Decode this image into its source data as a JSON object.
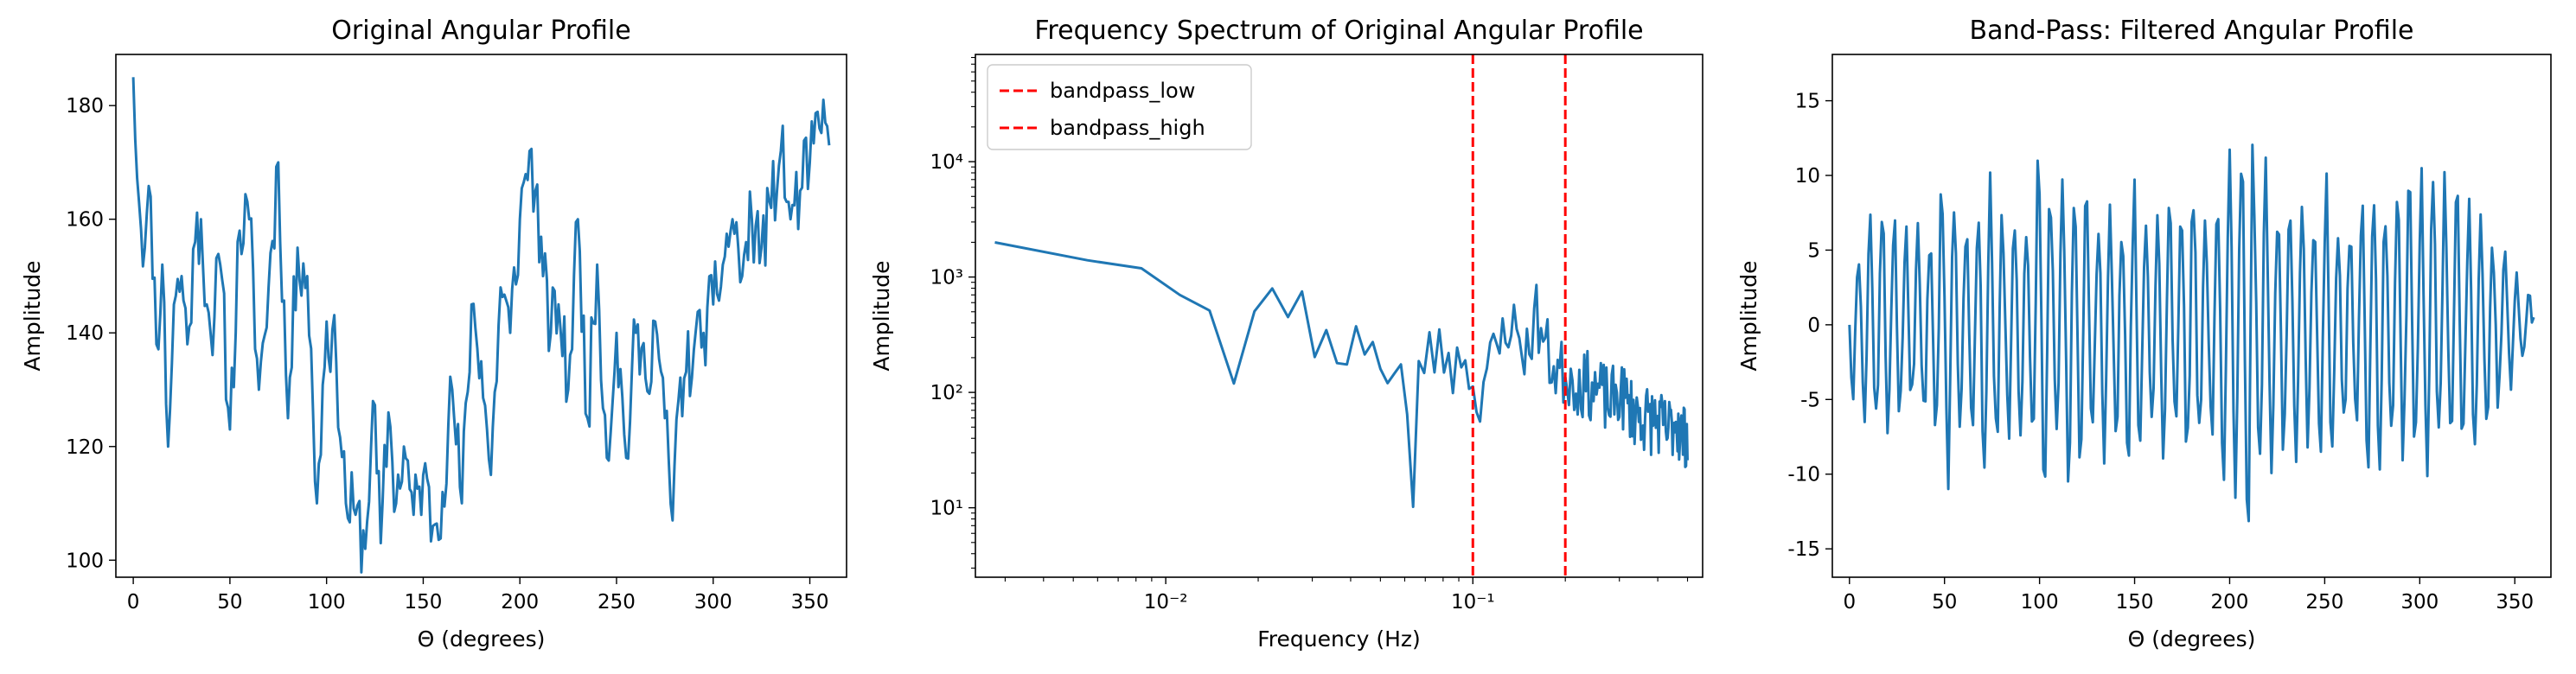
{
  "chart_data": [
    {
      "type": "line",
      "title": "Original Angular Profile",
      "xlabel": "Θ (degrees)",
      "ylabel": "Amplitude",
      "xlim": [
        -9,
        369
      ],
      "ylim": [
        97,
        189
      ],
      "xticks": [
        0,
        50,
        100,
        150,
        200,
        250,
        300,
        350
      ],
      "yticks": [
        100,
        120,
        140,
        160,
        180
      ],
      "grid": false,
      "color": "#1f77b4",
      "anchors": {
        "x": [
          0,
          3,
          6,
          9,
          12,
          15,
          18,
          21,
          25,
          28,
          32,
          35,
          38,
          40,
          45,
          50,
          55,
          60,
          65,
          70,
          75,
          80,
          85,
          90,
          95,
          100,
          105,
          110,
          115,
          120,
          124,
          128,
          132,
          136,
          140,
          145,
          150,
          155,
          160,
          165,
          170,
          175,
          180,
          185,
          190,
          195,
          200,
          205,
          208,
          212,
          216,
          220,
          225,
          230,
          235,
          240,
          245,
          250,
          255,
          260,
          265,
          270,
          275,
          279,
          282,
          285,
          290,
          295,
          300,
          305,
          310,
          315,
          320,
          325,
          330,
          335,
          340,
          345,
          350,
          355,
          358,
          360
        ],
        "y": [
          185,
          163,
          155,
          164,
          138,
          152,
          120,
          145,
          150,
          138,
          156,
          160,
          145,
          140,
          152,
          123,
          158,
          160,
          130,
          148,
          170,
          125,
          155,
          150,
          110,
          142,
          135,
          110,
          108,
          102,
          128,
          103,
          126,
          110,
          120,
          108,
          115,
          106,
          112,
          130,
          110,
          145,
          135,
          115,
          148,
          140,
          160,
          172,
          165,
          150,
          140,
          145,
          130,
          160,
          125,
          152,
          118,
          140,
          118,
          140,
          132,
          142,
          125,
          107,
          128,
          132,
          137,
          140,
          145,
          152,
          160,
          150,
          160,
          155,
          162,
          172,
          160,
          165,
          170,
          176,
          177,
          173
        ]
      },
      "noise_amplitude": 7
    },
    {
      "type": "line",
      "title": "Frequency Spectrum of Original Angular Profile",
      "xlabel": "Frequency (Hz)",
      "ylabel": "Amplitude",
      "xscale": "log",
      "yscale": "log",
      "xlim": [
        0.0024,
        0.56
      ],
      "ylim": [
        2.5,
        85000
      ],
      "xticks": [
        0.01,
        0.1
      ],
      "xtick_labels": [
        "10⁻²",
        "10⁻¹"
      ],
      "yticks": [
        10,
        100,
        1000,
        10000
      ],
      "ytick_labels": [
        "10¹",
        "10²",
        "10³",
        "10⁴"
      ],
      "grid": false,
      "legend_position": "upper-left",
      "color": "#1f77b4",
      "anchors": {
        "x": [
          0.00277,
          0.00554,
          0.0083,
          0.0111,
          0.0138,
          0.0166,
          0.0194,
          0.0222,
          0.025,
          0.0277,
          0.0305,
          0.0333,
          0.036,
          0.0388,
          0.0416,
          0.0443,
          0.0471,
          0.05,
          0.055,
          0.06,
          0.064,
          0.067,
          0.072,
          0.078,
          0.083,
          0.088,
          0.094,
          0.1,
          0.105,
          0.11,
          0.12,
          0.13,
          0.14,
          0.15,
          0.16,
          0.17,
          0.18,
          0.19,
          0.2,
          0.22,
          0.25,
          0.28,
          0.3,
          0.33,
          0.36,
          0.4,
          0.43,
          0.46,
          0.48,
          0.5
        ],
        "y": [
          2000,
          1400,
          1200,
          700,
          540,
          115,
          500,
          800,
          450,
          780,
          200,
          350,
          180,
          170,
          380,
          210,
          280,
          160,
          180,
          150,
          7,
          170,
          250,
          200,
          230,
          150,
          300,
          90,
          100,
          160,
          200,
          450,
          300,
          220,
          500,
          280,
          180,
          150,
          150,
          120,
          110,
          80,
          100,
          70,
          60,
          55,
          45,
          60,
          40,
          45
        ]
      },
      "noise_amplitude_log10": 0.3,
      "vlines": [
        {
          "name": "bandpass_low",
          "x": 0.1,
          "color": "#ff0000"
        },
        {
          "name": "bandpass_high",
          "x": 0.2,
          "color": "#ff0000"
        }
      ]
    },
    {
      "type": "line",
      "title": "Band-Pass: Filtered Angular Profile",
      "xlabel": "Θ (degrees)",
      "ylabel": "Amplitude",
      "xlim": [
        -9,
        369
      ],
      "ylim": [
        -16.9,
        18.1
      ],
      "xticks": [
        0,
        50,
        100,
        150,
        200,
        250,
        300,
        350
      ],
      "yticks": [
        -15,
        -10,
        -5,
        0,
        5,
        10,
        15
      ],
      "grid": false,
      "color": "#1f77b4",
      "oscillation": {
        "start": 0,
        "end": 360,
        "period_degrees": 6.3,
        "first_value": 0,
        "last_value": 0.5
      },
      "envelope": {
        "x": [
          0,
          10,
          20,
          30,
          40,
          50,
          60,
          70,
          80,
          90,
          100,
          110,
          120,
          130,
          140,
          150,
          160,
          170,
          180,
          190,
          200,
          205,
          210,
          215,
          220,
          230,
          240,
          250,
          260,
          270,
          280,
          290,
          300,
          310,
          320,
          330,
          340,
          350,
          360
        ],
        "y": [
          6,
          9,
          10,
          7,
          8,
          12,
          9,
          11,
          10,
          9,
          13,
          10,
          12,
          9,
          10,
          11,
          9,
          10,
          12,
          9,
          14,
          15,
          16,
          13,
          11,
          10,
          10,
          11,
          9,
          10,
          11,
          10,
          12,
          11,
          10,
          10,
          7,
          4,
          2
        ]
      }
    }
  ]
}
